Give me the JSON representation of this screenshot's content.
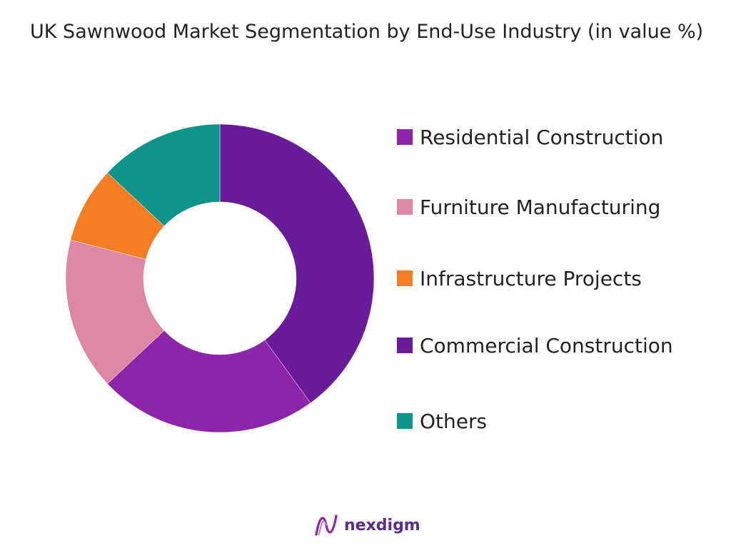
{
  "title": "UK Sawnwood Market Segmentation by End-Use Industry (in value %)",
  "brand": {
    "name": "nexdigm",
    "logo_icon": "nexdigm-logo-icon"
  },
  "chart_data": {
    "type": "pie",
    "variant": "donut",
    "legend_position": "right",
    "series": [
      {
        "name": "Residential Construction",
        "value": 40,
        "color": "#6a1b9a"
      },
      {
        "name": "Furniture Manufacturing",
        "value": 16,
        "color": "#de87a2"
      },
      {
        "name": "Infrastructure Projects",
        "value": 8,
        "color": "#f47c22"
      },
      {
        "name": "Commercial Construction",
        "value": 23,
        "color": "#8e24aa"
      },
      {
        "name": "Others",
        "value": 13,
        "color": "#0e9488"
      }
    ],
    "slice_order_clockwise_from_top": [
      "Residential Construction",
      "Commercial Construction",
      "Furniture Manufacturing",
      "Infrastructure Projects",
      "Others"
    ],
    "legend_swatch_colors": [
      "#8e24aa",
      "#de87a2",
      "#f47c22",
      "#6a1b9a",
      "#0e9488"
    ]
  }
}
